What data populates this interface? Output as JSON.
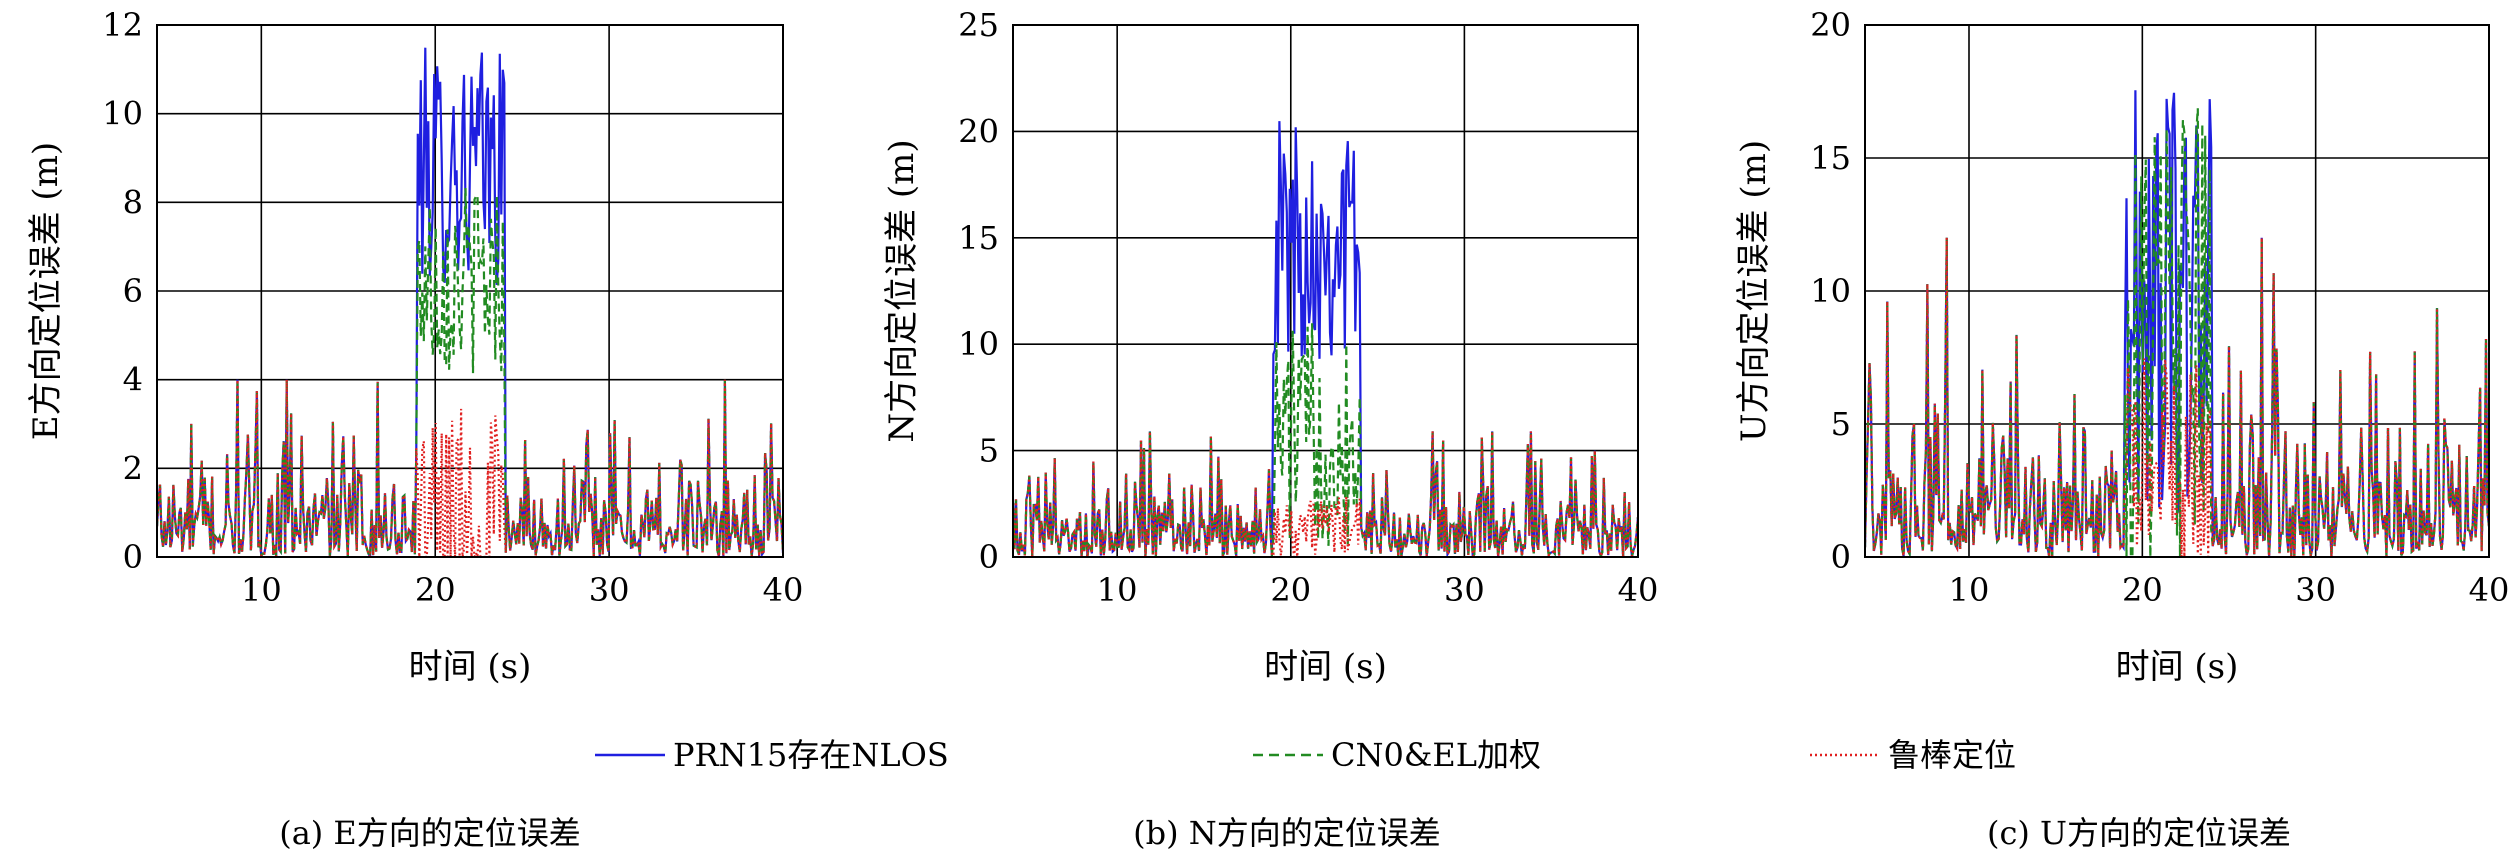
{
  "legend": [
    {
      "label": "PRN15存在NLOS",
      "color": "#1f1fe0",
      "dash": "solid",
      "icon": "solid-line-icon"
    },
    {
      "label": "CN0&EL加权",
      "color": "#228b22",
      "dash": "dashed",
      "icon": "dashed-line-icon"
    },
    {
      "label": "鲁棒定位",
      "color": "#e02020",
      "dash": "dotted",
      "icon": "dotted-line-icon"
    }
  ],
  "chart_data": [
    {
      "type": "line",
      "caption": "(a) E方向的定位误差",
      "xlabel": "时间 (s)",
      "ylabel": "E方向定位误差 (m)",
      "xlim": [
        4,
        40
      ],
      "ylim": [
        0,
        12
      ],
      "xticks": [
        10,
        20,
        30,
        40
      ],
      "yticks": [
        0,
        2,
        4,
        6,
        8,
        10,
        12
      ],
      "grid": true,
      "nlos_interval": [
        19,
        24
      ],
      "series": [
        {
          "name": "PRN15存在NLOS",
          "baseline_mean": 0.9,
          "baseline_max": 4.0,
          "nlos_mean": 8.8,
          "nlos_peak": 11.8
        },
        {
          "name": "CN0&EL加权",
          "baseline_mean": 0.9,
          "baseline_max": 4.0,
          "nlos_mean": 6.3,
          "nlos_peak": 8.7
        },
        {
          "name": "鲁棒定位",
          "baseline_mean": 0.9,
          "baseline_max": 4.0,
          "nlos_mean": 0.9,
          "nlos_peak": 3.8
        }
      ]
    },
    {
      "type": "line",
      "caption": "(b) N方向的定位误差",
      "xlabel": "时间 (s)",
      "ylabel": "N方向定位误差 (m)",
      "xlim": [
        4,
        40
      ],
      "ylim": [
        0,
        25
      ],
      "xticks": [
        10,
        20,
        30,
        40
      ],
      "yticks": [
        0,
        5,
        10,
        15,
        20,
        25
      ],
      "grid": true,
      "nlos_interval": [
        19,
        24
      ],
      "series": [
        {
          "name": "PRN15存在NLOS",
          "baseline_mean": 1.4,
          "baseline_max": 5.9,
          "nlos_mean": 15.0,
          "nlos_peak": 21.4
        },
        {
          "name": "CN0&EL加权",
          "baseline_mean": 1.4,
          "baseline_max": 5.9,
          "nlos_mean": 5.8,
          "nlos_peak": 11.7
        },
        {
          "name": "鲁棒定位",
          "baseline_mean": 1.4,
          "baseline_max": 5.9,
          "nlos_mean": 1.4,
          "nlos_peak": 3.0
        }
      ]
    },
    {
      "type": "line",
      "caption": "(c) U方向的定位误差",
      "xlabel": "时间 (s)",
      "ylabel": "U方向定位误差 (m)",
      "xlim": [
        4,
        40
      ],
      "ylim": [
        0,
        20
      ],
      "xticks": [
        10,
        20,
        30,
        40
      ],
      "yticks": [
        0,
        5,
        10,
        15,
        20
      ],
      "grid": true,
      "nlos_interval": [
        19,
        24
      ],
      "series": [
        {
          "name": "PRN15存在NLOS",
          "baseline_mean": 2.4,
          "baseline_max": 12.0,
          "nlos_mean": 9.5,
          "nlos_peak": 18.5
        },
        {
          "name": "CN0&EL加权",
          "baseline_mean": 2.4,
          "baseline_max": 12.0,
          "nlos_mean": 7.5,
          "nlos_peak": 18.3
        },
        {
          "name": "鲁棒定位",
          "baseline_mean": 2.4,
          "baseline_max": 12.0,
          "nlos_mean": 3.5,
          "nlos_peak": 8.0
        }
      ]
    }
  ]
}
